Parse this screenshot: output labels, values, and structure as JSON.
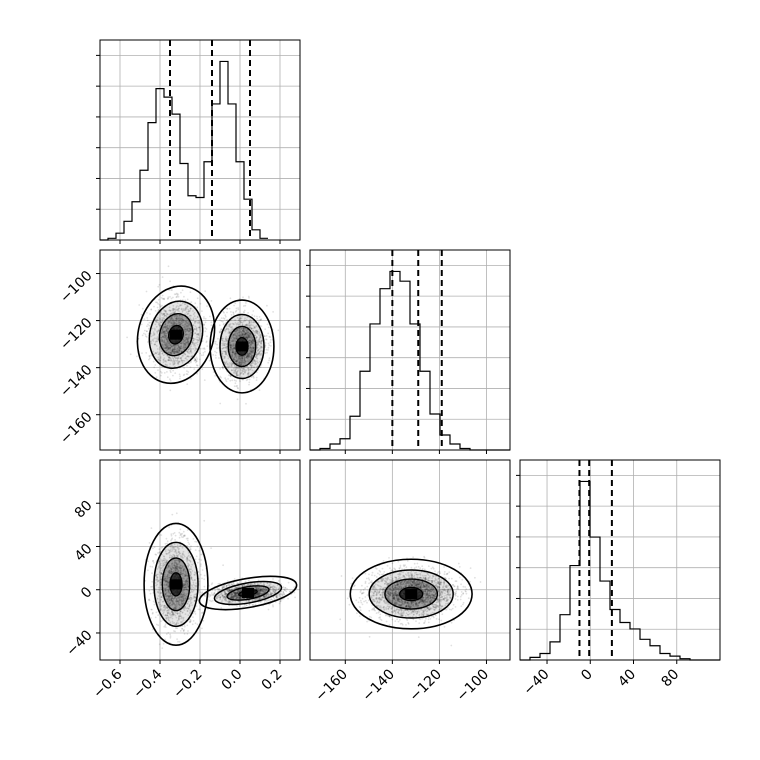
{
  "chart_data": {
    "type": "corner",
    "title": "",
    "grid": true,
    "variables": [
      {
        "label": "",
        "range": [
          -0.7,
          0.3
        ],
        "ticks": [
          -0.6,
          -0.4,
          -0.2,
          0.0,
          0.2
        ],
        "tick_labels": [
          "−0.6",
          "−0.4",
          "−0.2",
          "0.0",
          "0.2"
        ]
      },
      {
        "label": "",
        "range": [
          -175,
          -90
        ],
        "ticks": [
          -160,
          -140,
          -120,
          -100
        ],
        "tick_labels": [
          "−160",
          "−140",
          "−120",
          "−100"
        ]
      },
      {
        "label": "",
        "range": [
          -65,
          120
        ],
        "ticks": [
          -40,
          0,
          40,
          80
        ],
        "tick_labels": [
          "−40",
          "0",
          "40",
          "80"
        ]
      }
    ],
    "quantiles": [
      [
        -0.35,
        -0.14,
        0.05
      ],
      [
        -140,
        -129,
        -119
      ],
      [
        -10,
        -1,
        20
      ]
    ],
    "histograms": [
      {
        "variable": 0,
        "bin_start": -0.7,
        "bin_width": 0.04,
        "counts": [
          0,
          2,
          8,
          22,
          45,
          82,
          138,
          178,
          168,
          148,
          90,
          52,
          50,
          92,
          160,
          210,
          160,
          92,
          48,
          12,
          2
        ]
      },
      {
        "variable": 1,
        "bin_start": -175,
        "bin_width": 4.25,
        "counts": [
          0,
          2,
          8,
          15,
          45,
          105,
          168,
          215,
          238,
          225,
          168,
          105,
          48,
          20,
          8,
          2,
          0,
          0,
          0,
          0
        ]
      },
      {
        "variable": 2,
        "bin_start": -65,
        "bin_width": 9.25,
        "counts": [
          0,
          2,
          5,
          14,
          35,
          73,
          138,
          95,
          61,
          39,
          29,
          24,
          16,
          11,
          5,
          3,
          1,
          0,
          0,
          0
        ]
      }
    ],
    "joint_2d": [
      {
        "x_variable": 0,
        "y_variable": 1,
        "modes": [
          {
            "x": -0.32,
            "y": -126
          },
          {
            "x": 0.01,
            "y": -131
          }
        ]
      },
      {
        "x_variable": 0,
        "y_variable": 2,
        "modes": [
          {
            "x": -0.32,
            "y": 5
          },
          {
            "x": 0.04,
            "y": -3
          }
        ]
      },
      {
        "x_variable": 1,
        "y_variable": 2,
        "modes": [
          {
            "x": -132,
            "y": -4
          }
        ]
      }
    ]
  }
}
